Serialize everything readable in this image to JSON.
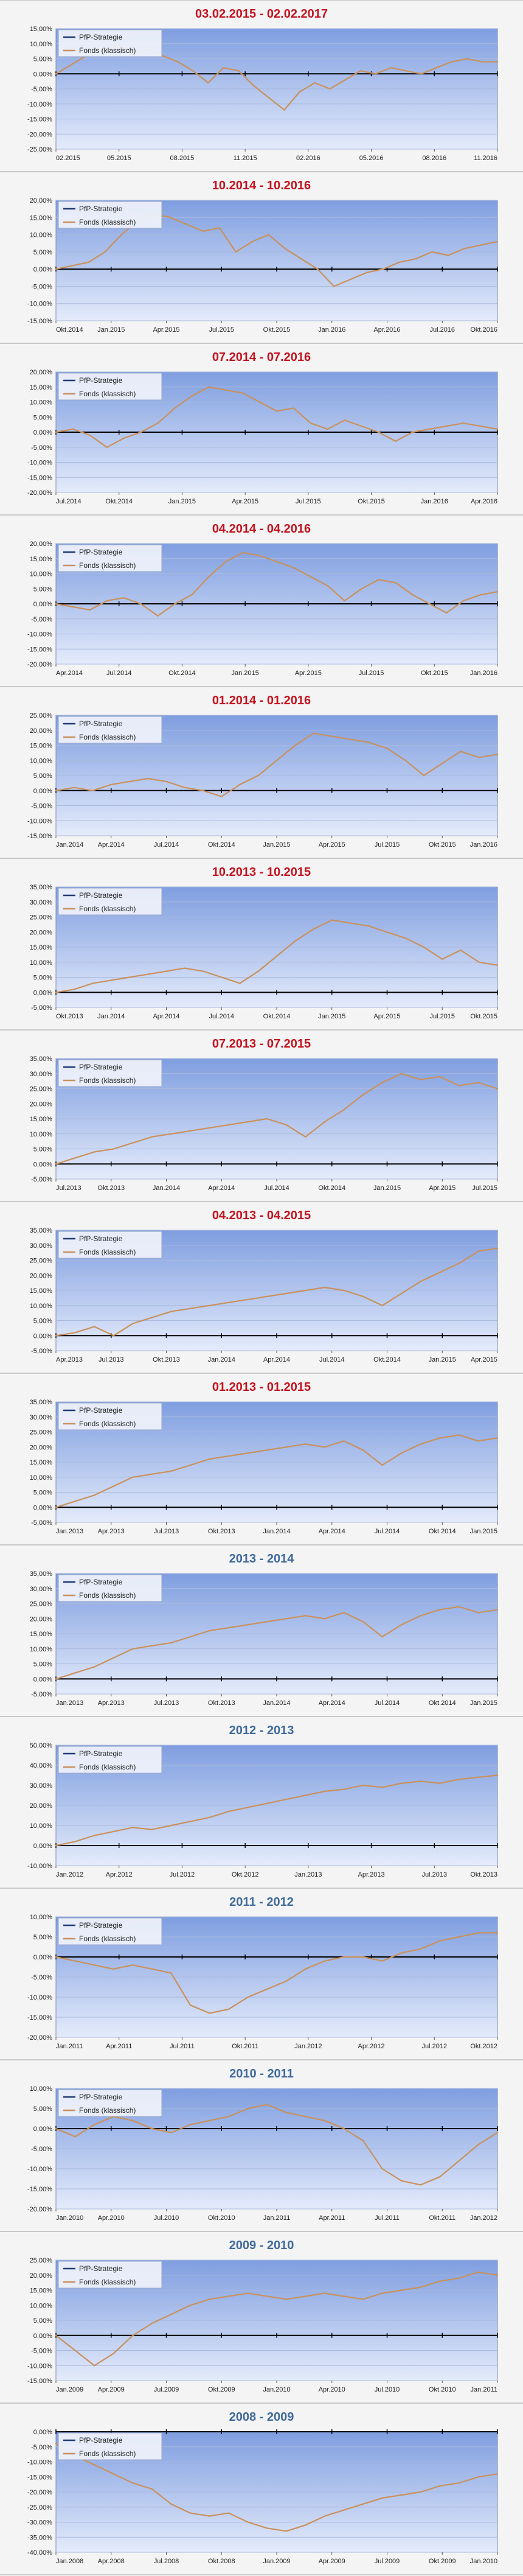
{
  "legend": {
    "series_a": "PfP-Strategie",
    "series_b": "Fonds (klassisch)"
  },
  "colors": {
    "title_red": "#c4121f",
    "title_blue": "#3f6a9c",
    "series_a": "#1f3b70",
    "series_b": "#c9915c"
  },
  "chart_data": [
    {
      "title": "03.02.2015 - 02.02.2017",
      "title_color": "red",
      "type": "line",
      "y_ticks": [
        "15,00%",
        "10,00%",
        "5,00%",
        "0,00%",
        "-5,00%",
        "-10,00%",
        "-15,00%",
        "-20,00%",
        "-25,00%"
      ],
      "ylim": [
        -25,
        15
      ],
      "x_ticks": [
        "02.2015",
        "05.2015",
        "08.2015",
        "11.2015",
        "02.2016",
        "05.2016",
        "08.2016",
        "11.2016"
      ],
      "series": [
        {
          "name": "Fonds (klassisch)",
          "values": [
            0,
            3,
            6,
            8,
            9,
            7,
            8,
            6,
            4,
            1,
            -3,
            2,
            1,
            -4,
            -8,
            -12,
            -6,
            -3,
            -5,
            -2,
            1,
            0,
            2,
            1,
            0,
            2,
            4,
            5,
            4,
            4
          ]
        }
      ]
    },
    {
      "title": "10.2014 - 10.2016",
      "title_color": "red",
      "type": "line",
      "y_ticks": [
        "20,00%",
        "15,00%",
        "10,00%",
        "5,00%",
        "0,00%",
        "-5,00%",
        "-10,00%",
        "-15,00%"
      ],
      "ylim": [
        -15,
        20
      ],
      "x_ticks": [
        "Okt.2014",
        "Jan.2015",
        "Apr.2015",
        "Jul.2015",
        "Okt.2015",
        "Jan.2016",
        "Apr.2016",
        "Jul.2016",
        "Okt.2016"
      ],
      "series": [
        {
          "name": "Fonds (klassisch)",
          "values": [
            0,
            1,
            2,
            5,
            10,
            14,
            16,
            15,
            13,
            11,
            12,
            5,
            8,
            10,
            6,
            3,
            0,
            -5,
            -3,
            -1,
            0,
            2,
            3,
            5,
            4,
            6,
            7,
            8
          ]
        }
      ]
    },
    {
      "title": "07.2014 - 07.2016",
      "title_color": "red",
      "type": "line",
      "y_ticks": [
        "20,00%",
        "15,00%",
        "10,00%",
        "5,00%",
        "0,00%",
        "-5,00%",
        "-10,00%",
        "-15,00%",
        "-20,00%"
      ],
      "ylim": [
        -20,
        20
      ],
      "x_ticks": [
        "Jul.2014",
        "Okt.2014",
        "Jan.2015",
        "Apr.2015",
        "Jul.2015",
        "Okt.2015",
        "Jan.2016",
        "Apr.2016"
      ],
      "series": [
        {
          "name": "Fonds (klassisch)",
          "values": [
            0,
            1,
            -1,
            -5,
            -2,
            0,
            3,
            8,
            12,
            15,
            14,
            13,
            10,
            7,
            8,
            3,
            1,
            4,
            2,
            0,
            -3,
            0,
            1,
            2,
            3,
            2,
            1
          ]
        }
      ]
    },
    {
      "title": "04.2014 - 04.2016",
      "title_color": "red",
      "type": "line",
      "y_ticks": [
        "20,00%",
        "15,00%",
        "10,00%",
        "5,00%",
        "0,00%",
        "-5,00%",
        "-10,00%",
        "-15,00%",
        "-20,00%"
      ],
      "ylim": [
        -20,
        20
      ],
      "x_ticks": [
        "Apr.2014",
        "Jul.2014",
        "Okt.2014",
        "Jan.2015",
        "Apr.2015",
        "Jul.2015",
        "Okt.2015",
        "Jan.2016"
      ],
      "series": [
        {
          "name": "Fonds (klassisch)",
          "values": [
            0,
            -1,
            -2,
            1,
            2,
            0,
            -4,
            0,
            3,
            9,
            14,
            17,
            16,
            14,
            12,
            9,
            6,
            1,
            5,
            8,
            7,
            3,
            0,
            -3,
            1,
            3,
            4
          ]
        }
      ]
    },
    {
      "title": "01.2014 - 01.2016",
      "title_color": "red",
      "type": "line",
      "y_ticks": [
        "25,00%",
        "20,00%",
        "15,00%",
        "10,00%",
        "5,00%",
        "0,00%",
        "-5,00%",
        "-10,00%",
        "-15,00%"
      ],
      "ylim": [
        -15,
        25
      ],
      "x_ticks": [
        "Jan.2014",
        "Apr.2014",
        "Jul.2014",
        "Okt.2014",
        "Jan.2015",
        "Apr.2015",
        "Jul.2015",
        "Okt.2015",
        "Jan.2016"
      ],
      "series": [
        {
          "name": "Fonds (klassisch)",
          "values": [
            0,
            1,
            0,
            2,
            3,
            4,
            3,
            1,
            0,
            -2,
            2,
            5,
            10,
            15,
            19,
            18,
            17,
            16,
            14,
            10,
            5,
            9,
            13,
            11,
            12
          ]
        }
      ]
    },
    {
      "title": "10.2013 - 10.2015",
      "title_color": "red",
      "type": "line",
      "y_ticks": [
        "35,00%",
        "30,00%",
        "25,00%",
        "20,00%",
        "15,00%",
        "10,00%",
        "5,00%",
        "0,00%",
        "-5,00%"
      ],
      "ylim": [
        -5,
        35
      ],
      "x_ticks": [
        "Okt.2013",
        "Jan.2014",
        "Apr.2014",
        "Jul.2014",
        "Okt.2014",
        "Jan.2015",
        "Apr.2015",
        "Jul.2015",
        "Okt.2015"
      ],
      "series": [
        {
          "name": "Fonds (klassisch)",
          "values": [
            0,
            1,
            3,
            4,
            5,
            6,
            7,
            8,
            7,
            5,
            3,
            7,
            12,
            17,
            21,
            24,
            23,
            22,
            20,
            18,
            15,
            11,
            14,
            10,
            9
          ]
        }
      ]
    },
    {
      "title": "07.2013 - 07.2015",
      "title_color": "red",
      "type": "line",
      "y_ticks": [
        "35,00%",
        "30,00%",
        "25,00%",
        "20,00%",
        "15,00%",
        "10,00%",
        "5,00%",
        "0,00%",
        "-5,00%"
      ],
      "ylim": [
        -5,
        35
      ],
      "x_ticks": [
        "Jul.2013",
        "Okt.2013",
        "Jan.2014",
        "Apr.2014",
        "Jul.2014",
        "Okt.2014",
        "Jan.2015",
        "Apr.2015",
        "Jul.2015"
      ],
      "series": [
        {
          "name": "Fonds (klassisch)",
          "values": [
            0,
            2,
            4,
            5,
            7,
            9,
            10,
            11,
            12,
            13,
            14,
            15,
            13,
            9,
            14,
            18,
            23,
            27,
            30,
            28,
            29,
            26,
            27,
            25
          ]
        }
      ]
    },
    {
      "title": "04.2013 - 04.2015",
      "title_color": "red",
      "type": "line",
      "y_ticks": [
        "35,00%",
        "30,00%",
        "25,00%",
        "20,00%",
        "15,00%",
        "10,00%",
        "5,00%",
        "0,00%",
        "-5,00%"
      ],
      "ylim": [
        -5,
        35
      ],
      "x_ticks": [
        "Apr.2013",
        "Jul.2013",
        "Okt.2013",
        "Jan.2014",
        "Apr.2014",
        "Jul.2014",
        "Okt.2014",
        "Jan.2015",
        "Apr.2015"
      ],
      "series": [
        {
          "name": "Fonds (klassisch)",
          "values": [
            0,
            1,
            3,
            0,
            4,
            6,
            8,
            9,
            10,
            11,
            12,
            13,
            14,
            15,
            16,
            15,
            13,
            10,
            14,
            18,
            21,
            24,
            28,
            29
          ]
        }
      ]
    },
    {
      "title": "01.2013 - 01.2015",
      "title_color": "red",
      "type": "line",
      "y_ticks": [
        "35,00%",
        "30,00%",
        "25,00%",
        "20,00%",
        "15,00%",
        "10,00%",
        "5,00%",
        "0,00%",
        "-5,00%"
      ],
      "ylim": [
        -5,
        35
      ],
      "x_ticks": [
        "Jan.2013",
        "Apr.2013",
        "Jul.2013",
        "Okt.2013",
        "Jan.2014",
        "Apr.2014",
        "Jul.2014",
        "Okt.2014",
        "Jan.2015"
      ],
      "series": [
        {
          "name": "Fonds (klassisch)",
          "values": [
            0,
            2,
            4,
            7,
            10,
            11,
            12,
            14,
            16,
            17,
            18,
            19,
            20,
            21,
            20,
            22,
            19,
            14,
            18,
            21,
            23,
            24,
            22,
            23
          ]
        }
      ]
    },
    {
      "title": "2013 - 2014",
      "title_color": "blue",
      "type": "line",
      "y_ticks": [
        "35,00%",
        "30,00%",
        "25,00%",
        "20,00%",
        "15,00%",
        "10,00%",
        "5,00%",
        "0,00%",
        "-5,00%"
      ],
      "ylim": [
        -5,
        35
      ],
      "x_ticks": [
        "Jan.2013",
        "Apr.2013",
        "Jul.2013",
        "Okt.2013",
        "Jan.2014",
        "Apr.2014",
        "Jul.2014",
        "Okt.2014",
        "Jan.2015"
      ],
      "series": [
        {
          "name": "Fonds (klassisch)",
          "values": [
            0,
            2,
            4,
            7,
            10,
            11,
            12,
            14,
            16,
            17,
            18,
            19,
            20,
            21,
            20,
            22,
            19,
            14,
            18,
            21,
            23,
            24,
            22,
            23
          ]
        }
      ]
    },
    {
      "title": "2012 - 2013",
      "title_color": "blue",
      "type": "line",
      "y_ticks": [
        "50,00%",
        "40,00%",
        "30,00%",
        "20,00%",
        "10,00%",
        "0,00%",
        "-10,00%"
      ],
      "ylim": [
        -10,
        50
      ],
      "x_ticks": [
        "Jan.2012",
        "Apr.2012",
        "Jul.2012",
        "Okt.2012",
        "Jan.2013",
        "Apr.2013",
        "Jul.2013",
        "Okt.2013"
      ],
      "series": [
        {
          "name": "Fonds (klassisch)",
          "values": [
            0,
            2,
            5,
            7,
            9,
            8,
            10,
            12,
            14,
            17,
            19,
            21,
            23,
            25,
            27,
            28,
            30,
            29,
            31,
            32,
            31,
            33,
            34,
            35
          ]
        }
      ]
    },
    {
      "title": "2011 - 2012",
      "title_color": "blue",
      "type": "line",
      "y_ticks": [
        "10,00%",
        "5,00%",
        "0,00%",
        "-5,00%",
        "-10,00%",
        "-15,00%",
        "-20,00%"
      ],
      "ylim": [
        -20,
        10
      ],
      "x_ticks": [
        "Jan.2011",
        "Apr.2011",
        "Jul.2011",
        "Okt.2011",
        "Jan.2012",
        "Apr.2012",
        "Jul.2012",
        "Okt.2012"
      ],
      "series": [
        {
          "name": "Fonds (klassisch)",
          "values": [
            0,
            -1,
            -2,
            -3,
            -2,
            -3,
            -4,
            -12,
            -14,
            -13,
            -10,
            -8,
            -6,
            -3,
            -1,
            0,
            0,
            -1,
            1,
            2,
            4,
            5,
            6,
            6
          ]
        }
      ]
    },
    {
      "title": "2010 - 2011",
      "title_color": "blue",
      "type": "line",
      "y_ticks": [
        "10,00%",
        "5,00%",
        "0,00%",
        "-5,00%",
        "-10,00%",
        "-15,00%",
        "-20,00%"
      ],
      "ylim": [
        -20,
        10
      ],
      "x_ticks": [
        "Jan.2010",
        "Apr.2010",
        "Jul.2010",
        "Okt.2010",
        "Jan.2011",
        "Apr.2011",
        "Jul.2011",
        "Okt.2011",
        "Jan.2012"
      ],
      "series": [
        {
          "name": "Fonds (klassisch)",
          "values": [
            0,
            -2,
            1,
            3,
            2,
            0,
            -1,
            1,
            2,
            3,
            5,
            6,
            4,
            3,
            2,
            0,
            -3,
            -10,
            -13,
            -14,
            -12,
            -8,
            -4,
            -1
          ]
        }
      ]
    },
    {
      "title": "2009 - 2010",
      "title_color": "blue",
      "type": "line",
      "y_ticks": [
        "25,00%",
        "20,00%",
        "15,00%",
        "10,00%",
        "5,00%",
        "0,00%",
        "-5,00%",
        "-10,00%",
        "-15,00%"
      ],
      "ylim": [
        -15,
        25
      ],
      "x_ticks": [
        "Jan.2009",
        "Apr.2009",
        "Jul.2009",
        "Okt.2009",
        "Jan.2010",
        "Apr.2010",
        "Jul.2010",
        "Okt.2010",
        "Jan.2011"
      ],
      "series": [
        {
          "name": "Fonds (klassisch)",
          "values": [
            0,
            -5,
            -10,
            -6,
            0,
            4,
            7,
            10,
            12,
            13,
            14,
            13,
            12,
            13,
            14,
            13,
            12,
            14,
            15,
            16,
            18,
            19,
            21,
            20
          ]
        }
      ]
    },
    {
      "title": "2008 - 2009",
      "title_color": "blue",
      "type": "line",
      "y_ticks": [
        "0,00%",
        "-5,00%",
        "-10,00%",
        "-15,00%",
        "-20,00%",
        "-25,00%",
        "-30,00%",
        "-35,00%",
        "-40,00%"
      ],
      "ylim": [
        -40,
        0
      ],
      "x_ticks": [
        "Jan.2008",
        "Apr.2008",
        "Jul.2008",
        "Okt.2008",
        "Jan.2009",
        "Apr.2009",
        "Jul.2009",
        "Okt.2009",
        "Jan.2010"
      ],
      "series": [
        {
          "name": "Fonds (klassisch)",
          "values": [
            -4,
            -8,
            -11,
            -14,
            -17,
            -19,
            -24,
            -27,
            -28,
            -27,
            -30,
            -32,
            -33,
            -31,
            -28,
            -26,
            -24,
            -22,
            -21,
            -20,
            -18,
            -17,
            -15,
            -14
          ]
        }
      ]
    }
  ]
}
